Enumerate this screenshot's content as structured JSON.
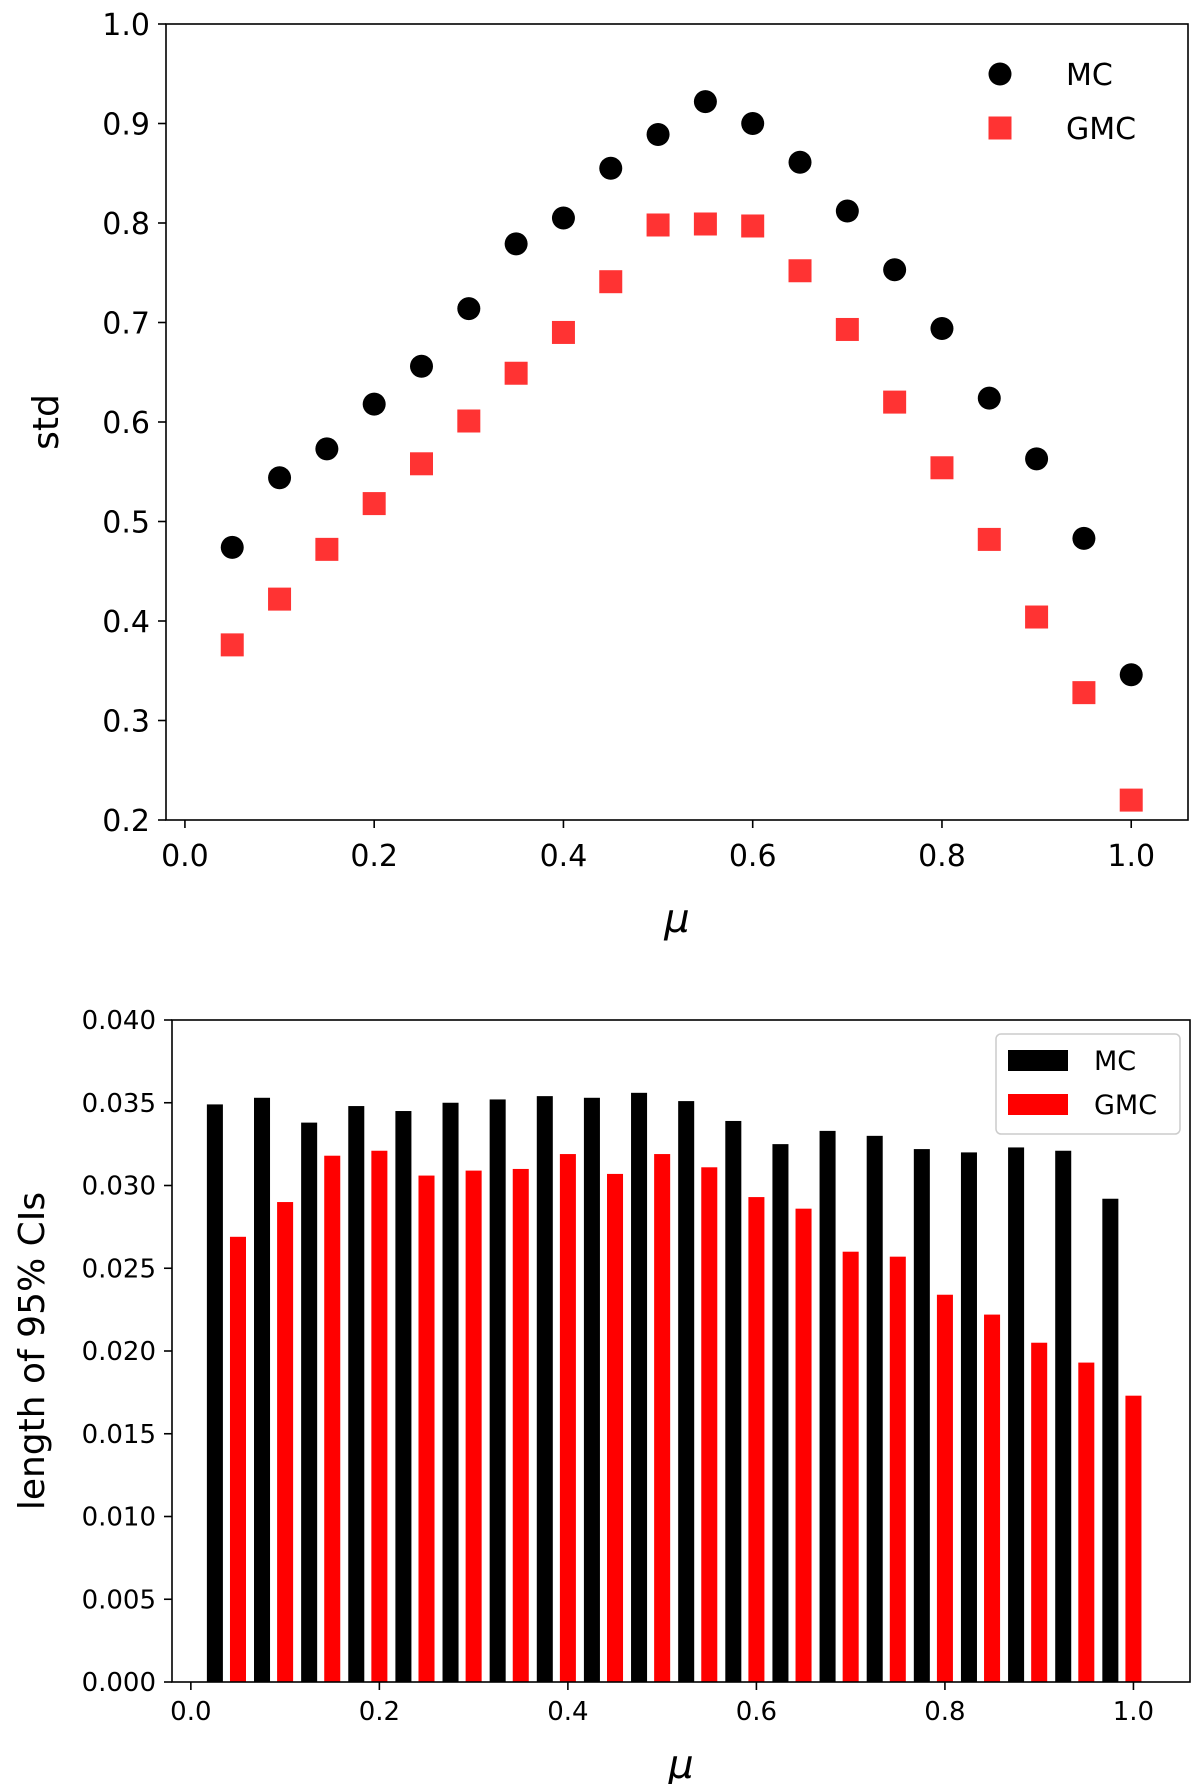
{
  "chart_data": [
    {
      "type": "scatter",
      "title": "",
      "xlabel": "μ",
      "ylabel": "std",
      "xlim": [
        -0.02,
        1.06
      ],
      "ylim": [
        0.2,
        1.0
      ],
      "xticks": [
        0.0,
        0.2,
        0.4,
        0.6,
        0.8,
        1.0
      ],
      "xtick_labels": [
        "0.0",
        "0.2",
        "0.4",
        "0.6",
        "0.8",
        "1.0"
      ],
      "yticks": [
        0.2,
        0.3,
        0.4,
        0.5,
        0.6,
        0.7,
        0.8,
        0.9,
        1.0
      ],
      "ytick_labels": [
        "0.2",
        "0.3",
        "0.4",
        "0.5",
        "0.6",
        "0.7",
        "0.8",
        "0.9",
        "1.0"
      ],
      "legend_position": "top-right",
      "x": [
        0.05,
        0.1,
        0.15,
        0.2,
        0.25,
        0.3,
        0.35,
        0.4,
        0.45,
        0.5,
        0.55,
        0.6,
        0.65,
        0.7,
        0.75,
        0.8,
        0.85,
        0.9,
        0.95,
        1.0
      ],
      "series": [
        {
          "name": "MC",
          "marker": "circle",
          "color": "#000000",
          "values": [
            0.474,
            0.544,
            0.573,
            0.618,
            0.656,
            0.714,
            0.779,
            0.805,
            0.855,
            0.889,
            0.922,
            0.9,
            0.861,
            0.812,
            0.753,
            0.694,
            0.624,
            0.563,
            0.483,
            0.346
          ]
        },
        {
          "name": "GMC",
          "marker": "square",
          "color": "#ff3333",
          "values": [
            0.376,
            0.422,
            0.472,
            0.518,
            0.558,
            0.601,
            0.649,
            0.69,
            0.741,
            0.798,
            0.799,
            0.797,
            0.752,
            0.693,
            0.62,
            0.554,
            0.482,
            0.404,
            0.328,
            0.22
          ]
        }
      ]
    },
    {
      "type": "bar",
      "title": "",
      "xlabel": "μ",
      "ylabel": "length of 95% CIs",
      "xlim": [
        -0.02,
        1.06
      ],
      "ylim": [
        0.0,
        0.04
      ],
      "xticks": [
        0.0,
        0.2,
        0.4,
        0.6,
        0.8,
        1.0
      ],
      "xtick_labels": [
        "0.0",
        "0.2",
        "0.4",
        "0.6",
        "0.8",
        "1.0"
      ],
      "yticks": [
        0.0,
        0.005,
        0.01,
        0.015,
        0.02,
        0.025,
        0.03,
        0.035,
        0.04
      ],
      "ytick_labels": [
        "0.000",
        "0.005",
        "0.010",
        "0.015",
        "0.020",
        "0.025",
        "0.030",
        "0.035",
        "0.040"
      ],
      "legend_position": "top-right",
      "categories": [
        0.05,
        0.1,
        0.15,
        0.2,
        0.25,
        0.3,
        0.35,
        0.4,
        0.45,
        0.5,
        0.55,
        0.6,
        0.65,
        0.7,
        0.75,
        0.8,
        0.85,
        0.9,
        0.95,
        1.0
      ],
      "series": [
        {
          "name": "MC",
          "color": "#000000",
          "values": [
            0.0349,
            0.0353,
            0.0338,
            0.0348,
            0.0345,
            0.035,
            0.0352,
            0.0354,
            0.0353,
            0.0356,
            0.0351,
            0.0339,
            0.0325,
            0.0333,
            0.033,
            0.0322,
            0.032,
            0.0323,
            0.0321,
            0.0292
          ]
        },
        {
          "name": "GMC",
          "color": "#ff0000",
          "values": [
            0.0269,
            0.029,
            0.0318,
            0.0321,
            0.0306,
            0.0309,
            0.031,
            0.0319,
            0.0307,
            0.0319,
            0.0311,
            0.0293,
            0.0286,
            0.026,
            0.0257,
            0.0234,
            0.0222,
            0.0205,
            0.0193,
            0.0173
          ]
        }
      ]
    }
  ]
}
